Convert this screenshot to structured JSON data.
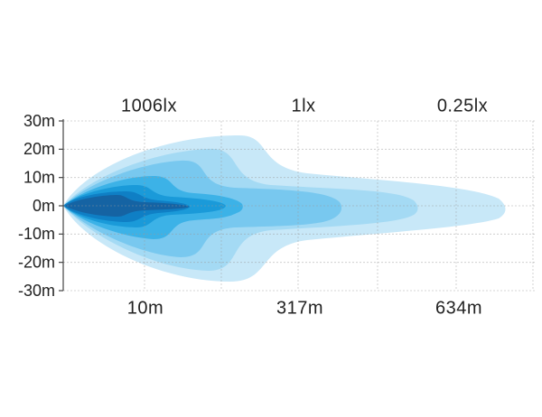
{
  "y_labels": [
    "30m",
    "20m",
    "10m",
    "0m",
    "-10m",
    "-20m",
    "-30m"
  ],
  "top_labels": [
    "1006lx",
    "1lx",
    "0.25lx"
  ],
  "bottom_labels": [
    "10m",
    "317m",
    "634m"
  ]
}
